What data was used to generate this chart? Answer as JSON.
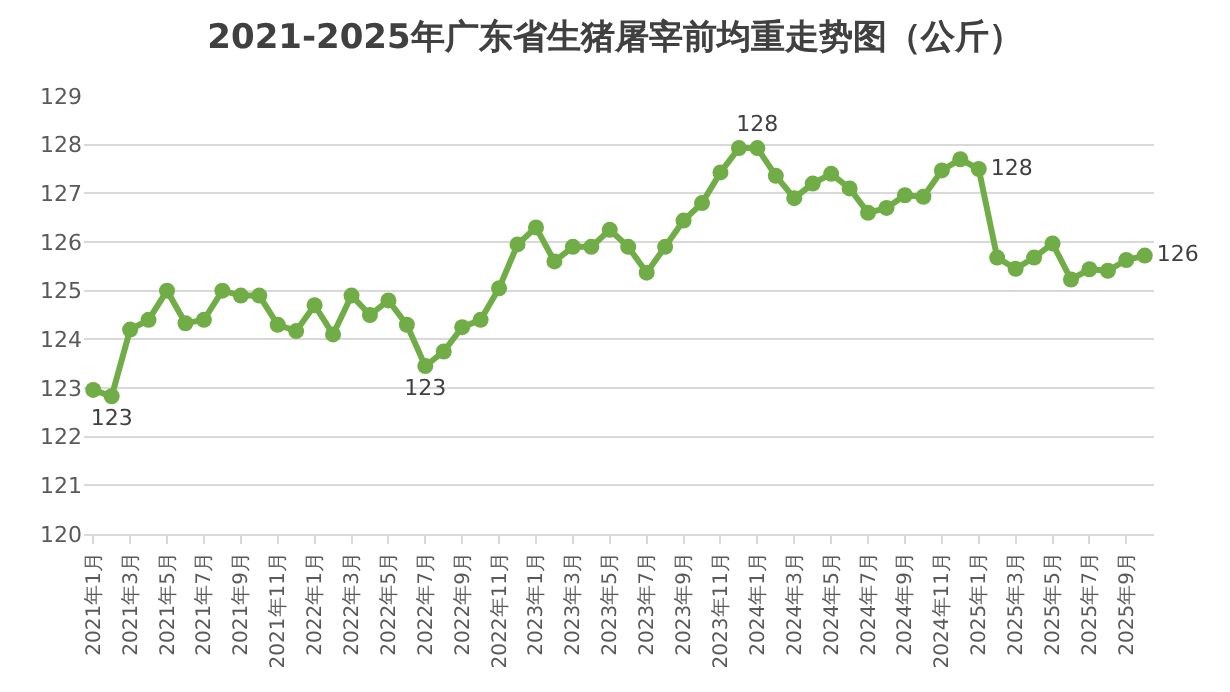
{
  "chart_data": {
    "type": "line",
    "title": "2021-2025年广东省生猪屠宰前均重走势图（公斤）",
    "categories": [
      "2021年1月",
      null,
      "2021年3月",
      null,
      "2021年5月",
      null,
      "2021年7月",
      null,
      "2021年9月",
      null,
      "2021年11月",
      null,
      "2022年1月",
      null,
      "2022年3月",
      null,
      "2022年5月",
      null,
      "2022年7月",
      null,
      "2022年9月",
      null,
      "2022年11月",
      null,
      "2023年1月",
      null,
      "2023年3月",
      null,
      "2023年5月",
      null,
      "2023年7月",
      null,
      "2023年9月",
      null,
      "2023年11月",
      null,
      "2024年1月",
      null,
      "2024年3月",
      null,
      "2024年5月",
      null,
      "2024年7月",
      null,
      "2024年9月",
      null,
      "2024年11月",
      null,
      "2025年1月",
      null,
      "2025年3月",
      null,
      "2025年5月",
      null,
      "2025年7月",
      null,
      "2025年9月",
      null
    ],
    "series": [
      {
        "color": "#70ad47",
        "values": [
          122.96,
          122.83,
          124.2,
          124.4,
          125.0,
          124.33,
          124.4,
          125.0,
          124.9,
          124.9,
          124.3,
          124.17,
          124.7,
          124.1,
          124.9,
          124.5,
          124.8,
          124.3,
          123.45,
          123.75,
          124.25,
          124.4,
          125.05,
          125.95,
          126.3,
          125.6,
          125.9,
          125.9,
          126.25,
          125.9,
          125.37,
          125.9,
          126.44,
          126.8,
          127.43,
          127.93,
          127.93,
          127.36,
          126.9,
          127.2,
          127.4,
          127.1,
          126.6,
          126.7,
          126.96,
          126.93,
          127.47,
          127.7,
          127.5,
          125.68,
          125.45,
          125.68,
          125.97,
          125.23,
          125.44,
          125.41,
          125.63,
          125.72
        ],
        "value_labels": [
          null,
          "123",
          null,
          null,
          null,
          null,
          null,
          null,
          null,
          null,
          null,
          null,
          null,
          null,
          null,
          null,
          null,
          null,
          "123",
          null,
          null,
          null,
          null,
          null,
          null,
          null,
          null,
          null,
          null,
          null,
          null,
          null,
          null,
          null,
          null,
          null,
          "128",
          null,
          null,
          null,
          null,
          null,
          null,
          null,
          null,
          null,
          null,
          null,
          "128",
          null,
          null,
          null,
          null,
          null,
          null,
          null,
          null,
          "126"
        ]
      }
    ],
    "ylim": [
      120,
      129
    ],
    "yticks": [
      120,
      121,
      122,
      123,
      124,
      125,
      126,
      127,
      128,
      129
    ],
    "grid": "y",
    "legend": false,
    "marker": "circle",
    "line_style": "solid"
  }
}
